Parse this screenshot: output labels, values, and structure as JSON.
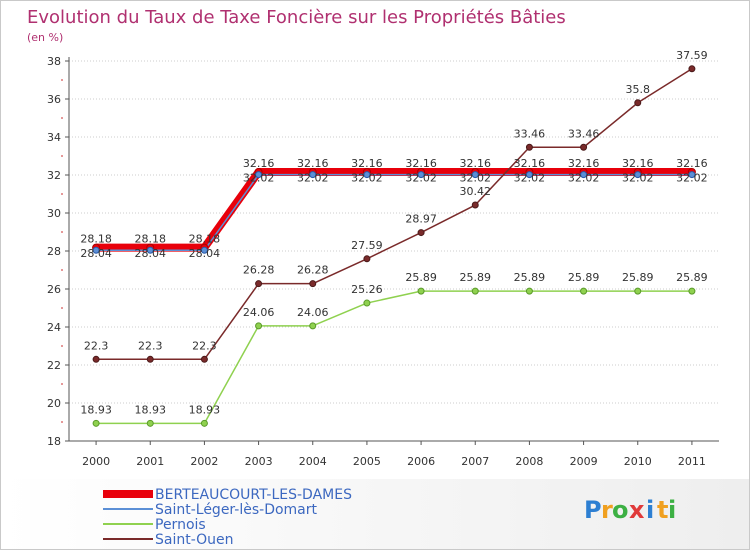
{
  "chart_data": {
    "type": "line",
    "title": "Evolution du Taux de Taxe Foncière sur les Propriétés Bâties",
    "ylabel": "(en %)",
    "xlabel": "",
    "x": [
      "2000",
      "2001",
      "2002",
      "2003",
      "2004",
      "2005",
      "2006",
      "2007",
      "2008",
      "2009",
      "2010",
      "2011"
    ],
    "ylim": [
      18,
      38
    ],
    "yticks": [
      18,
      20,
      22,
      24,
      26,
      28,
      30,
      32,
      34,
      36,
      38
    ],
    "grid": "horizontal dotted",
    "legend_position": "bottom-left",
    "series": [
      {
        "name": "BERTEAUCOURT-LES-DAMES",
        "color": "#e8000b",
        "values": [
          28.18,
          28.18,
          28.18,
          32.16,
          32.16,
          32.16,
          32.16,
          32.16,
          32.16,
          32.16,
          32.16,
          32.16
        ],
        "labels": [
          "28.18",
          "28.18",
          "28.18",
          "32.16",
          "32.16",
          "32.16",
          "32.16",
          "32.16",
          "32.16",
          "32.16",
          "32.16",
          "32.16"
        ]
      },
      {
        "name": "Saint-Léger-lès-Domart",
        "color": "#5b8fd6",
        "values": [
          28.04,
          28.04,
          28.04,
          32.02,
          32.02,
          32.02,
          32.02,
          32.02,
          32.02,
          32.02,
          32.02,
          32.02
        ],
        "labels": [
          "28.04",
          "28.04",
          "28.04",
          "32.02",
          "32.02",
          "32.02",
          "32.02",
          "32.02",
          "32.02",
          "32.02",
          "32.02",
          "32.02"
        ]
      },
      {
        "name": "Pernois",
        "color": "#8fd14f",
        "values": [
          18.93,
          18.93,
          18.93,
          24.06,
          24.06,
          25.26,
          25.89,
          25.89,
          25.89,
          25.89,
          25.89,
          25.89
        ],
        "labels": [
          "18.93",
          "18.93",
          "18.93",
          "24.06",
          "24.06",
          "25.26",
          "25.89",
          "25.89",
          "25.89",
          "25.89",
          "25.89",
          "25.89"
        ]
      },
      {
        "name": "Saint-Ouen",
        "color": "#7a2a2a",
        "values": [
          22.3,
          22.3,
          22.3,
          26.28,
          26.28,
          27.59,
          28.97,
          30.42,
          33.46,
          33.46,
          35.8,
          37.59
        ],
        "labels": [
          "22.3",
          "22.3",
          "22.3",
          "26.28",
          "26.28",
          "27.59",
          "28.97",
          "30.42",
          "33.46",
          "33.46",
          "35.8",
          "37.59"
        ]
      }
    ]
  },
  "logo": {
    "letters": [
      "P",
      "r",
      "o",
      "x",
      "i",
      "t",
      "i"
    ],
    "colors": [
      "#2d7fd2",
      "#f0a020",
      "#3cb043",
      "#e03a3a",
      "#2d7fd2",
      "#f0a020",
      "#3cb043"
    ]
  }
}
